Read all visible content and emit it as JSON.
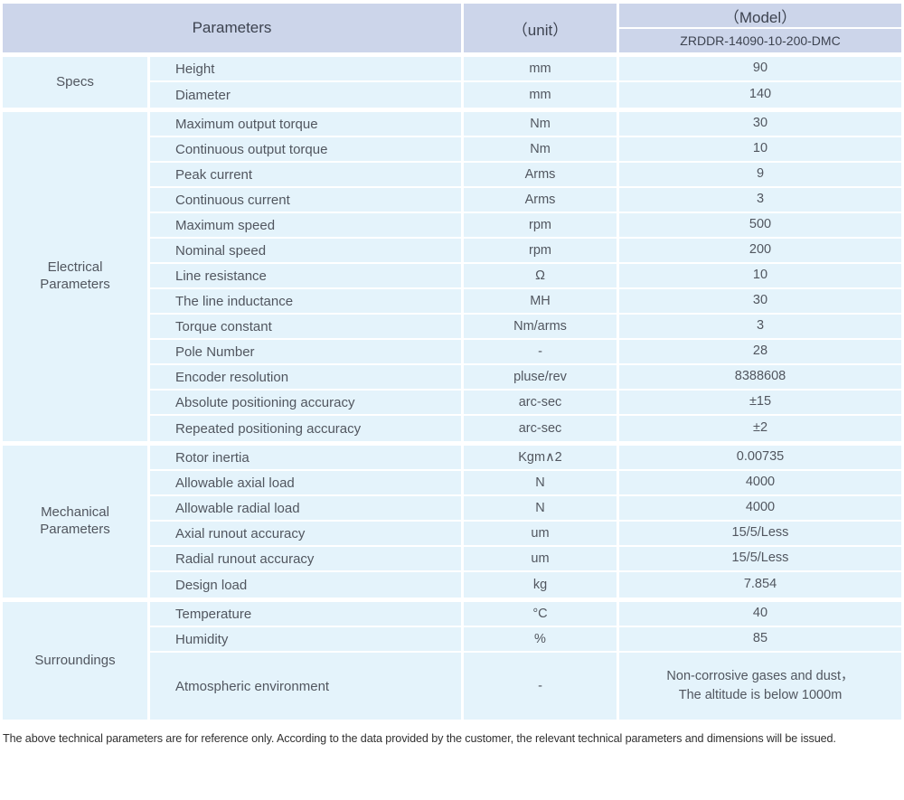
{
  "header": {
    "parameters_label": "Parameters",
    "unit_label": "（unit）",
    "model_label": "（Model）",
    "model_value": "ZRDDR-14090-10-200-DMC"
  },
  "sections": [
    {
      "group": "Specs",
      "rows": [
        {
          "param": "Height",
          "unit": "mm",
          "value": "90"
        },
        {
          "param": "Diameter",
          "unit": "mm",
          "value": "140"
        }
      ]
    },
    {
      "group": "Electrical\nParameters",
      "rows": [
        {
          "param": "Maximum output torque",
          "unit": "Nm",
          "value": "30"
        },
        {
          "param": "Continuous output torque",
          "unit": "Nm",
          "value": "10"
        },
        {
          "param": "Peak current",
          "unit": "Arms",
          "value": "9"
        },
        {
          "param": "Continuous current",
          "unit": "Arms",
          "value": "3"
        },
        {
          "param": "Maximum speed",
          "unit": "rpm",
          "value": "500"
        },
        {
          "param": "Nominal speed",
          "unit": "rpm",
          "value": "200"
        },
        {
          "param": "Line resistance",
          "unit": "Ω",
          "value": "10"
        },
        {
          "param": "The line inductance",
          "unit": "MH",
          "value": "30"
        },
        {
          "param": "Torque constant",
          "unit": "Nm/arms",
          "value": "3"
        },
        {
          "param": "Pole Number",
          "unit": "-",
          "value": "28"
        },
        {
          "param": "Encoder resolution",
          "unit": "pluse/rev",
          "value": "8388608"
        },
        {
          "param": "Absolute positioning accuracy",
          "unit": "arc-sec",
          "value": "±15"
        },
        {
          "param": "Repeated positioning accuracy",
          "unit": "arc-sec",
          "value": "±2"
        }
      ]
    },
    {
      "group": "Mechanical\nParameters",
      "rows": [
        {
          "param": "Rotor inertia",
          "unit": "Kgm∧2",
          "value": "0.00735"
        },
        {
          "param": "Allowable axial load",
          "unit": "N",
          "value": "4000"
        },
        {
          "param": "Allowable radial load",
          "unit": "N",
          "value": "4000"
        },
        {
          "param": "Axial runout accuracy",
          "unit": "um",
          "value": "15/5/Less"
        },
        {
          "param": "Radial runout accuracy",
          "unit": "um",
          "value": "15/5/Less"
        },
        {
          "param": "Design load",
          "unit": "kg",
          "value": "7.854"
        }
      ]
    },
    {
      "group": "Surroundings",
      "rows": [
        {
          "param": "Temperature",
          "unit": "°C",
          "value": "40"
        },
        {
          "param": "Humidity",
          "unit": "%",
          "value": "85"
        },
        {
          "param": "Atmospheric environment",
          "unit": "-",
          "value": "Non-corrosive gases and dust，\nThe altitude is below 1000m",
          "tall": true
        }
      ]
    }
  ],
  "footer": {
    "note": "The above technical parameters are for reference only. According to the data provided by the customer, the relevant technical parameters and dimensions will be issued."
  },
  "colors": {
    "header_bg": "#ccd5ea",
    "cell_bg": "#e4f3fb",
    "separator": "#ffffff",
    "header_text": "#3d4350",
    "body_text": "#51565f",
    "footer_text": "#303030"
  }
}
